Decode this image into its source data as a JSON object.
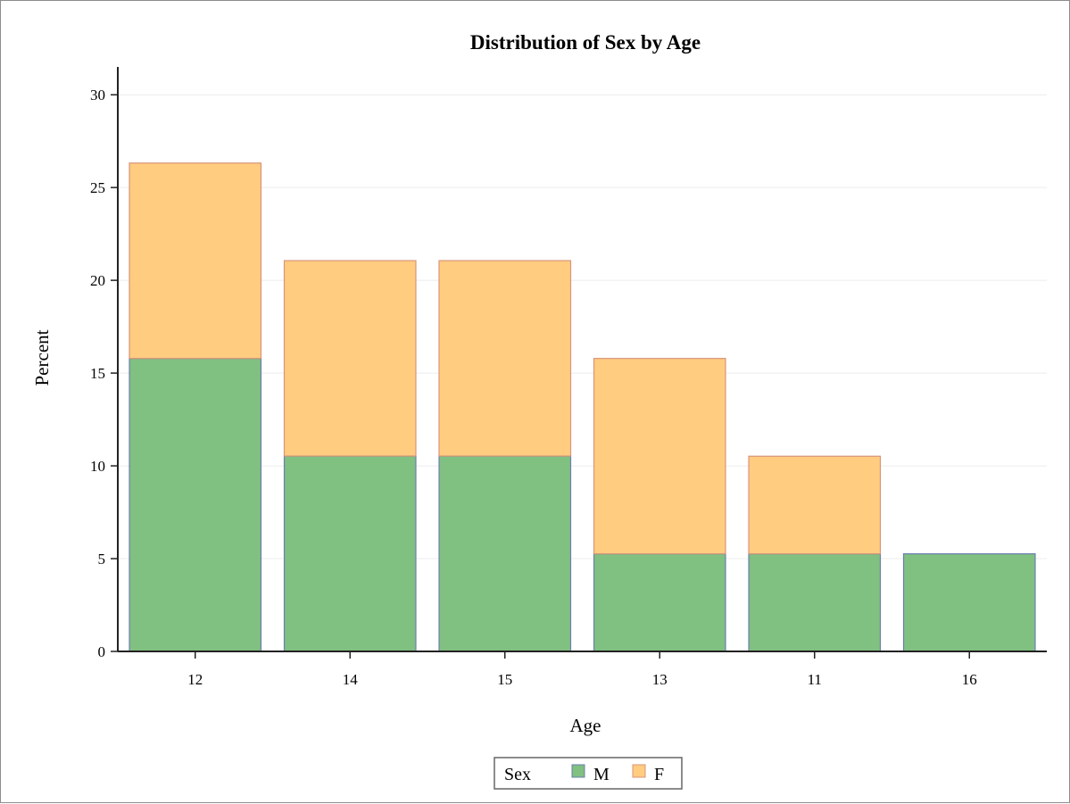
{
  "chart_data": {
    "type": "bar",
    "stacked": true,
    "title": "Distribution of Sex by Age",
    "xlabel": "Age",
    "ylabel": "Percent",
    "categories": [
      "12",
      "14",
      "15",
      "13",
      "11",
      "16"
    ],
    "series": [
      {
        "name": "M",
        "values": [
          15.79,
          10.53,
          10.53,
          5.26,
          5.26,
          5.26
        ],
        "color": "#80c080"
      },
      {
        "name": "F",
        "values": [
          10.53,
          10.53,
          10.53,
          10.53,
          5.26,
          0
        ],
        "color": "#ffcc80"
      }
    ],
    "ylim": [
      0,
      31.5
    ],
    "yticks": [
      "0",
      "5",
      "10",
      "15",
      "20",
      "25",
      "30"
    ],
    "grid": true,
    "legend": {
      "title": "Sex",
      "position": "bottom"
    },
    "colors": {
      "m_edge": "#6b7fb0",
      "f_edge": "#d8957a",
      "grid": "#ececec",
      "axis": "#222222"
    }
  }
}
